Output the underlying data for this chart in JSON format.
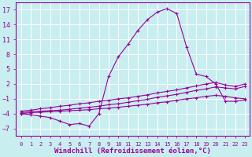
{
  "background_color": "#c8eef0",
  "line_color": "#990099",
  "grid_color": "#ffffff",
  "xlabel": "Windchill (Refroidissement éolien,°C)",
  "xlabel_fontsize": 6.5,
  "xtick_fontsize": 5.0,
  "ytick_fontsize": 6,
  "yticks": [
    -7,
    -4,
    -1,
    2,
    5,
    8,
    11,
    14,
    17
  ],
  "xticks": [
    0,
    1,
    2,
    3,
    4,
    5,
    6,
    7,
    8,
    9,
    10,
    11,
    12,
    13,
    14,
    15,
    16,
    17,
    18,
    19,
    20,
    21,
    22,
    23
  ],
  "xlim": [
    -0.5,
    23.5
  ],
  "ylim": [
    -8.5,
    18.5
  ],
  "series": [
    {
      "x": [
        0,
        1,
        2,
        3,
        4,
        5,
        6,
        7,
        8,
        9,
        10,
        11,
        12,
        13,
        14,
        15,
        16,
        17,
        18,
        19,
        20,
        21,
        22,
        23
      ],
      "y": [
        -3.5,
        -3.3,
        -3.0,
        -2.8,
        -2.5,
        -2.3,
        -2.0,
        -1.8,
        -1.5,
        -1.3,
        -1.0,
        -0.8,
        -0.5,
        -0.2,
        0.2,
        0.5,
        0.8,
        1.2,
        1.6,
        2.0,
        2.3,
        1.8,
        1.5,
        2.0
      ]
    },
    {
      "x": [
        0,
        1,
        2,
        3,
        4,
        5,
        6,
        7,
        8,
        9,
        10,
        11,
        12,
        13,
        14,
        15,
        16,
        17,
        18,
        19,
        20,
        21,
        22,
        23
      ],
      "y": [
        -4.0,
        -3.8,
        -3.7,
        -3.6,
        -3.5,
        -3.4,
        -3.3,
        -3.2,
        -3.0,
        -2.9,
        -2.7,
        -2.5,
        -2.3,
        -2.1,
        -1.8,
        -1.6,
        -1.3,
        -1.0,
        -0.8,
        -0.5,
        -0.3,
        -0.5,
        -0.8,
        -1.0
      ]
    },
    {
      "x": [
        0,
        1,
        2,
        3,
        4,
        5,
        6,
        7,
        8,
        9,
        10,
        11,
        12,
        13,
        14,
        15,
        16,
        17,
        18,
        19,
        20,
        21,
        22,
        23
      ],
      "y": [
        -3.8,
        -3.6,
        -3.5,
        -3.4,
        -3.3,
        -3.1,
        -2.9,
        -2.7,
        -2.5,
        -2.2,
        -2.0,
        -1.7,
        -1.4,
        -1.1,
        -0.7,
        -0.4,
        -0.1,
        0.3,
        0.7,
        1.0,
        1.4,
        1.2,
        1.0,
        1.5
      ]
    },
    {
      "x": [
        0,
        1,
        2,
        3,
        4,
        5,
        6,
        7,
        8,
        9,
        10,
        11,
        12,
        13,
        14,
        15,
        16,
        17,
        18,
        19,
        20,
        21,
        22,
        23
      ],
      "y": [
        -4.0,
        -4.2,
        -4.5,
        -4.8,
        -5.5,
        -6.2,
        -6.0,
        -6.5,
        -4.0,
        3.5,
        7.5,
        10.0,
        12.8,
        15.0,
        16.5,
        17.2,
        16.2,
        9.5,
        4.0,
        3.5,
        2.0,
        -1.5,
        -1.5,
        -1.2
      ]
    }
  ]
}
